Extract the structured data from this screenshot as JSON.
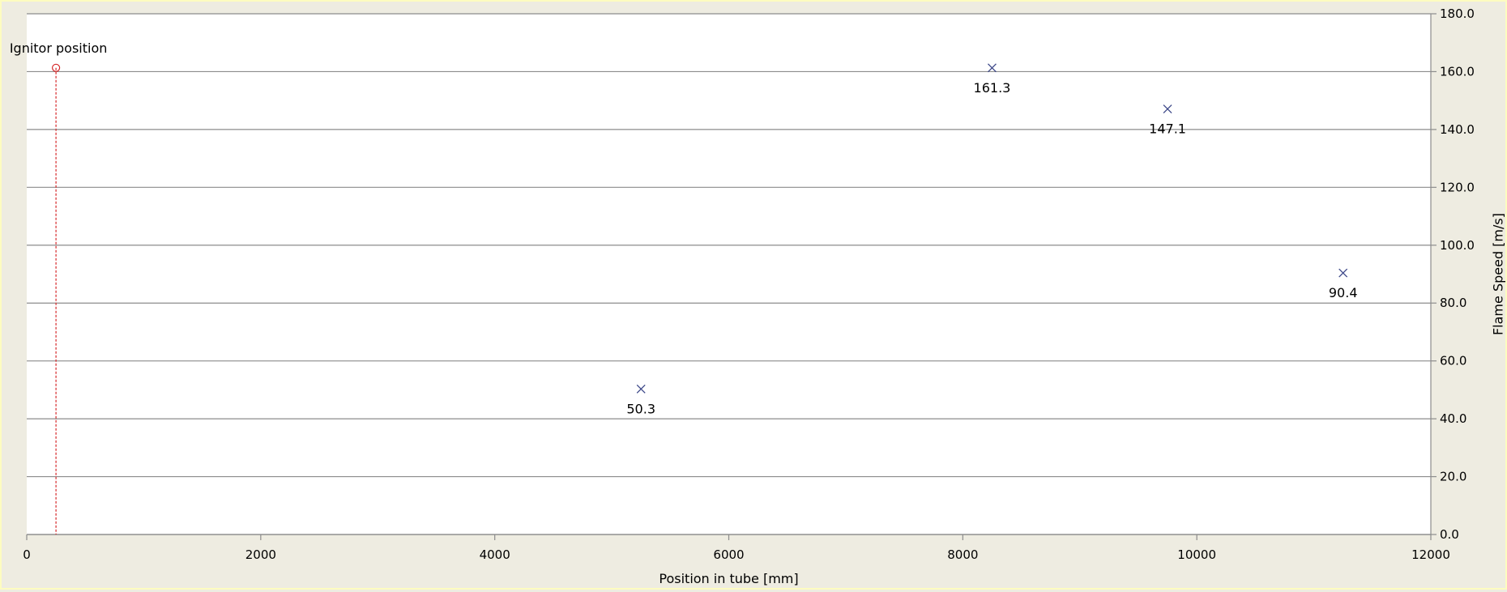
{
  "chart_data": {
    "type": "scatter",
    "title": "",
    "xlabel": "Position in tube [mm]",
    "ylabel": "Flame Speed [m/s]",
    "xlim": [
      0,
      12000
    ],
    "ylim": [
      0.0,
      180.0
    ],
    "xticks": [
      "0",
      "2000",
      "4000",
      "6000",
      "8000",
      "10000",
      "12000"
    ],
    "yticks": [
      "0.0",
      "20.0",
      "40.0",
      "60.0",
      "80.0",
      "100.0",
      "120.0",
      "140.0",
      "160.0",
      "180.0"
    ],
    "grid": "horizontal",
    "y_axis_side": "right",
    "colors": {
      "series": "#3f4a8a",
      "ignitor": "#d62728",
      "grid": "#8c8c8c",
      "plot_bg": "#ffffff"
    },
    "series": [
      {
        "marker": "x",
        "points": [
          {
            "x": 5250,
            "y": 50.3,
            "label": "50.3"
          },
          {
            "x": 8250,
            "y": 161.3,
            "label": "161.3"
          },
          {
            "x": 9750,
            "y": 147.1,
            "label": "147.1"
          },
          {
            "x": 11250,
            "y": 90.4,
            "label": "90.4"
          }
        ]
      }
    ],
    "annotations": [
      {
        "text": "Ignitor position",
        "x": 250,
        "y": 161.3,
        "marker": "circle",
        "line": "dashed-vertical"
      }
    ]
  }
}
